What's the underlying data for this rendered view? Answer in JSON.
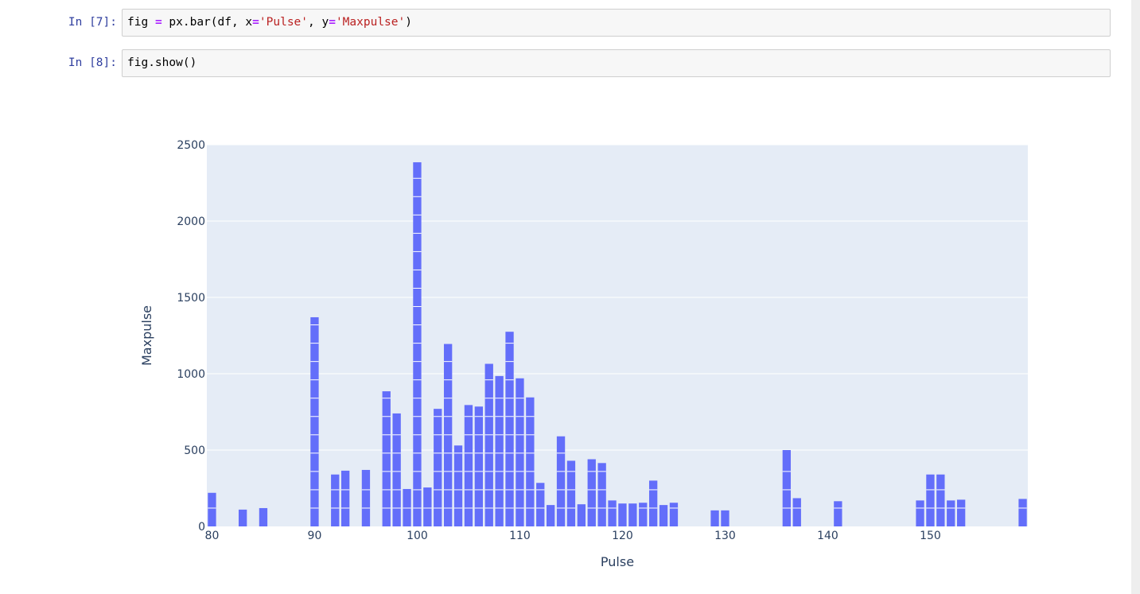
{
  "cells": [
    {
      "prompt": "In [7]:",
      "code_tokens": [
        "fig",
        " ",
        "=",
        " px.bar(df, x",
        "=",
        "'Pulse'",
        ", y",
        "=",
        "'Maxpulse'",
        ")"
      ]
    },
    {
      "prompt": "In [8]:",
      "code_tokens": [
        "fig.show()"
      ]
    }
  ],
  "colors": {
    "bar": "#636efa",
    "plot_bg": "#e5ecf6",
    "grid": "#ffffff",
    "axis_text": "#2a3f5f",
    "prompt": "#303f9f",
    "code_operator": "#aa22ff",
    "code_string": "#ba2121"
  },
  "chart_data": {
    "type": "bar",
    "xlabel": "Pulse",
    "ylabel": "Maxpulse",
    "xlim": [
      79.5,
      159.5
    ],
    "ylim": [
      0,
      2500
    ],
    "x_ticks": [
      80,
      90,
      100,
      110,
      120,
      130,
      140,
      150
    ],
    "y_ticks": [
      0,
      500,
      1000,
      1500,
      2000,
      2500
    ],
    "grid": true,
    "legend": "none",
    "bar_segment_size": 120,
    "x": [
      80,
      83,
      85,
      90,
      92,
      93,
      95,
      97,
      98,
      99,
      100,
      101,
      102,
      103,
      104,
      105,
      106,
      107,
      108,
      109,
      110,
      111,
      112,
      113,
      114,
      115,
      116,
      117,
      118,
      119,
      120,
      121,
      122,
      123,
      124,
      125,
      129,
      130,
      136,
      137,
      141,
      149,
      150,
      151,
      152,
      153,
      159
    ],
    "values": [
      220,
      110,
      120,
      1370,
      340,
      365,
      370,
      885,
      740,
      245,
      2385,
      255,
      770,
      1195,
      530,
      795,
      785,
      1065,
      985,
      1275,
      970,
      845,
      285,
      140,
      590,
      430,
      145,
      440,
      415,
      170,
      150,
      150,
      155,
      300,
      140,
      155,
      105,
      105,
      500,
      185,
      165,
      170,
      340,
      340,
      170,
      175,
      180
    ]
  }
}
